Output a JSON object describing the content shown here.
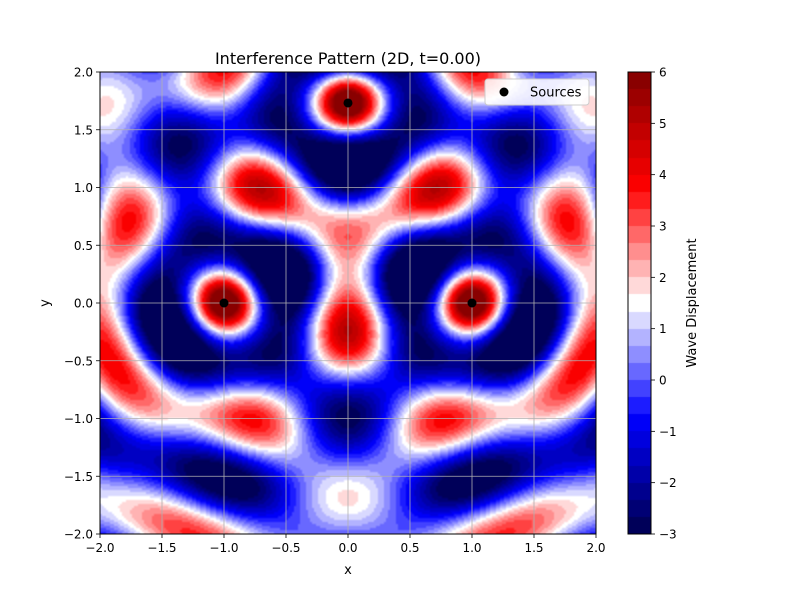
{
  "chart_data": {
    "type": "heatmap",
    "title": "Interference Pattern (2D, t=0.00)",
    "xlabel": "x",
    "ylabel": "y",
    "xlim": [
      -2.0,
      2.0
    ],
    "ylim": [
      -2.0,
      2.0
    ],
    "x_ticks": [
      -2.0,
      -1.5,
      -1.0,
      -0.5,
      0.0,
      0.5,
      1.0,
      1.5,
      2.0
    ],
    "y_ticks": [
      -2.0,
      -1.5,
      -1.0,
      -0.5,
      0.0,
      0.5,
      1.0,
      1.5,
      2.0
    ],
    "x_tick_labels": [
      "−2.0",
      "−1.5",
      "−1.0",
      "−0.5",
      "0.0",
      "0.5",
      "1.0",
      "1.5",
      "2.0"
    ],
    "y_tick_labels": [
      "−2.0",
      "−1.5",
      "−1.0",
      "−0.5",
      "0.0",
      "0.5",
      "1.0",
      "1.5",
      "2.0"
    ],
    "grid": true,
    "colormap": "seismic",
    "color_range": [
      -3,
      6
    ],
    "colorbar_label": "Wave Displacement",
    "colorbar_ticks": [
      -3,
      -2,
      -1,
      0,
      1,
      2,
      3,
      4,
      5,
      6
    ],
    "colorbar_tick_labels": [
      "−3",
      "−2",
      "−1",
      "0",
      "1",
      "2",
      "3",
      "4",
      "5",
      "6"
    ],
    "sources": [
      {
        "x": -1.0,
        "y": 0.0
      },
      {
        "x": 1.0,
        "y": 0.0
      },
      {
        "x": 0.0,
        "y": 1.732
      }
    ],
    "legend": {
      "placement": "upper-right",
      "entries": [
        "Sources"
      ]
    },
    "source_marker_color": "#000000"
  }
}
